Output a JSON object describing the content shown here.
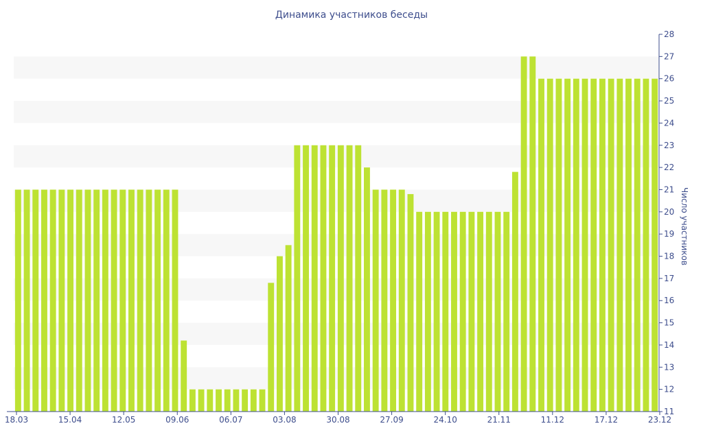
{
  "chart_data": {
    "type": "bar",
    "title": "Динамика участников беседы",
    "xlabel": "",
    "ylabel": "Число участников",
    "ylim": [
      11,
      28
    ],
    "yticks": [
      11,
      12,
      13,
      14,
      15,
      16,
      17,
      18,
      19,
      20,
      21,
      22,
      23,
      24,
      25,
      26,
      27,
      28
    ],
    "y_axis_position": "right",
    "grid": "alternating horizontal bands",
    "bar_color": "#bde233",
    "x_tick_labels": [
      "18.03",
      "15.04",
      "12.05",
      "09.06",
      "06.07",
      "03.08",
      "30.08",
      "27.09",
      "24.10",
      "21.11",
      "11.12",
      "17.12",
      "23.12"
    ],
    "values": [
      21,
      21,
      21,
      21,
      21,
      21,
      21,
      21,
      21,
      21,
      21,
      21,
      21,
      21,
      21,
      21,
      21,
      21,
      21,
      14.2,
      12,
      12,
      12,
      12,
      12,
      12,
      12,
      12,
      12,
      16.8,
      18,
      18.5,
      23,
      23,
      23,
      23,
      23,
      23,
      23,
      23,
      22,
      21,
      21,
      21,
      21,
      20.8,
      20,
      20,
      20,
      20,
      20,
      20,
      20,
      20,
      20,
      20,
      20,
      21.8,
      27,
      27,
      26,
      26,
      26,
      26,
      26,
      26,
      26,
      26,
      26,
      26,
      26,
      26,
      26,
      26
    ]
  }
}
